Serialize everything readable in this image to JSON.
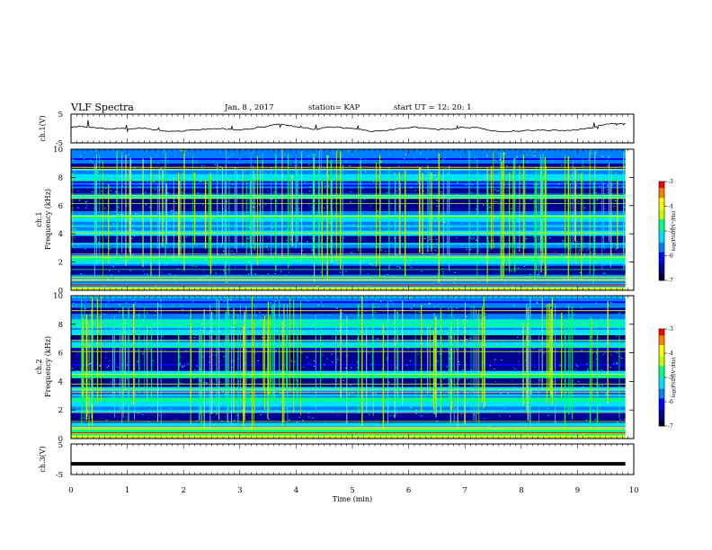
{
  "header": {
    "title": "VLF Spectra",
    "date": "Jan. 8 , 2017",
    "station": "station= KAP",
    "start_time": "start UT = 12: 20: 1"
  },
  "chart_data": {
    "type": "heatmap",
    "x_axis": {
      "label": "Time (min)",
      "range": [
        0,
        10
      ],
      "ticks": [
        "0",
        "1",
        "2",
        "3",
        "4",
        "5",
        "6",
        "7",
        "8",
        "9",
        "10"
      ],
      "data_end": 9.85
    },
    "panels": [
      {
        "id": "ch1_voltage",
        "type": "line",
        "ylabel": "ch.1(V)",
        "ylim": [
          -5,
          5
        ],
        "yticks": [
          "5",
          "-5"
        ],
        "baseline": 0,
        "color": "#000000"
      },
      {
        "id": "ch1_spectrogram",
        "type": "heatmap",
        "ylabel_top": "ch.1",
        "ylabel": "Frequency (kHz)",
        "ylim": [
          0,
          10
        ],
        "yticks": [
          "0",
          "2",
          "4",
          "6",
          "8",
          "10"
        ],
        "quiet_bands_khz": [
          [
            5.6,
            6.5
          ],
          [
            3.4,
            3.9
          ],
          [
            2.6,
            3.0
          ],
          [
            1.1,
            1.7
          ],
          [
            8.6,
            9.0
          ],
          [
            6.9,
            7.3
          ]
        ],
        "active_bands_khz": [
          [
            3.9,
            4.3
          ],
          [
            4.9,
            5.3
          ],
          [
            1.9,
            2.4
          ],
          [
            6.5,
            6.8
          ],
          [
            7.8,
            8.3
          ]
        ],
        "colorbar": {
          "label": "log(PSD)(V²/Hz)",
          "range": [
            -7,
            -3
          ],
          "ticks": [
            "-3",
            "-4",
            "-5",
            "-6",
            "-7"
          ]
        }
      },
      {
        "id": "ch2_spectrogram",
        "type": "heatmap",
        "ylabel_top": "ch.2",
        "ylabel": "Frequency (kHz)",
        "ylim": [
          0,
          10
        ],
        "yticks": [
          "0",
          "2",
          "4",
          "6",
          "8",
          "10"
        ],
        "quiet_bands_khz": [
          [
            5.3,
            6.3
          ],
          [
            3.6,
            4.2
          ],
          [
            1.1,
            1.7
          ],
          [
            6.9,
            7.3
          ],
          [
            8.7,
            9.1
          ],
          [
            4.8,
            5.1
          ]
        ],
        "active_bands_khz": [
          [
            2.3,
            2.9
          ],
          [
            4.3,
            4.8
          ],
          [
            6.4,
            6.8
          ],
          [
            7.8,
            8.4
          ],
          [
            0.3,
            0.8
          ]
        ],
        "colorbar": {
          "label": "log(PSD)(V²/Hz)",
          "range": [
            -7,
            -3
          ],
          "ticks": [
            "-3",
            "-4",
            "-5",
            "-6",
            "-7"
          ]
        }
      },
      {
        "id": "ch3_voltage",
        "type": "line",
        "ylabel": "ch.3(V)",
        "ylim": [
          -5,
          5
        ],
        "yticks": [
          "5",
          "-5"
        ],
        "constant_value": -1.5,
        "color": "#000000"
      }
    ],
    "colormap": [
      "#000030",
      "#000090",
      "#0000ff",
      "#0080ff",
      "#00e0ff",
      "#00ff80",
      "#c0ff00",
      "#ffff00",
      "#ff8000",
      "#ff0000"
    ]
  }
}
